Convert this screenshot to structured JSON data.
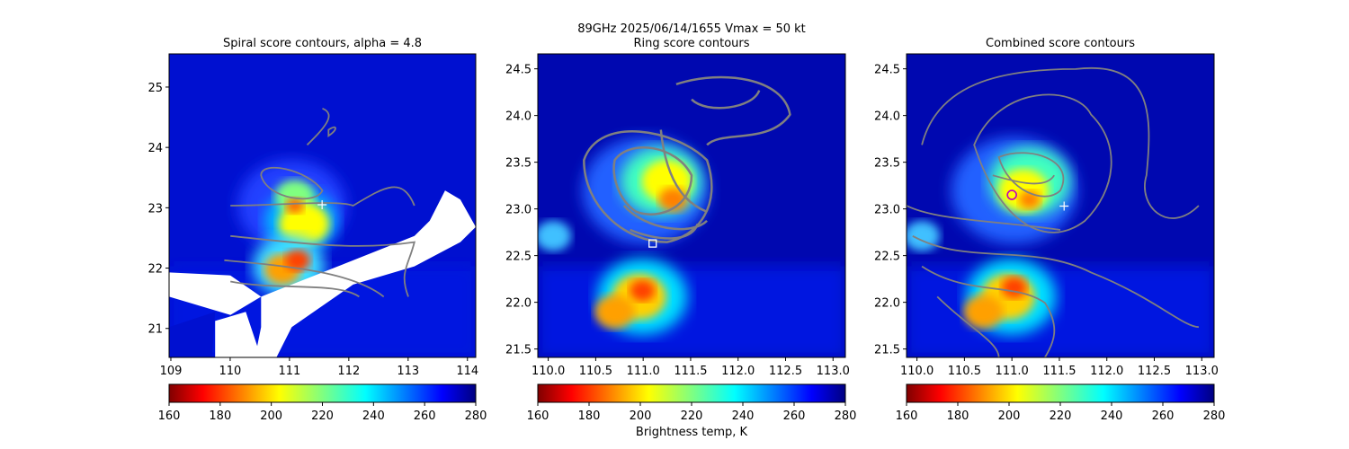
{
  "figure": {
    "suptitle": "89GHz  2025/06/14/1655    Vmax = 50 kt",
    "colorbar_label": "Brightness temp, K"
  },
  "chart_data": [
    {
      "type": "heatmap",
      "title": "Spiral score contours, alpha =  4.8",
      "xlim": [
        108.97,
        114.14
      ],
      "ylim": [
        20.52,
        25.55
      ],
      "xticks": [
        109,
        110,
        111,
        112,
        113,
        114
      ],
      "xtick_labels": [
        "109",
        "110",
        "111",
        "112",
        "113",
        "114"
      ],
      "yticks": [
        21,
        22,
        23,
        24,
        25
      ],
      "ytick_labels": [
        "21",
        "22",
        "23",
        "24",
        "25"
      ],
      "colorbar": {
        "range": [
          160,
          280
        ],
        "ticks": [
          "160",
          "180",
          "200",
          "220",
          "240",
          "260",
          "280"
        ],
        "colormap": "jet_r"
      },
      "markers": [
        {
          "shape": "plus",
          "x": 111.55,
          "y": 23.05,
          "color": "#ffffff"
        }
      ],
      "contour_color": "#808080"
    },
    {
      "type": "heatmap",
      "title": "Ring score contours",
      "xlim": [
        109.89,
        113.13
      ],
      "ylim": [
        21.41,
        24.66
      ],
      "xticks": [
        110.0,
        110.5,
        111.0,
        111.5,
        112.0,
        112.5,
        113.0
      ],
      "xtick_labels": [
        "110.0",
        "110.5",
        "111.0",
        "111.5",
        "112.0",
        "112.5",
        "113.0"
      ],
      "yticks": [
        21.5,
        22.0,
        22.5,
        23.0,
        23.5,
        24.0,
        24.5
      ],
      "ytick_labels": [
        "21.5",
        "22.0",
        "22.5",
        "23.0",
        "23.5",
        "24.0",
        "24.5"
      ],
      "colorbar": {
        "range": [
          160,
          280
        ],
        "ticks": [
          "160",
          "180",
          "200",
          "220",
          "240",
          "260",
          "280"
        ],
        "colormap": "jet_r"
      },
      "markers": [
        {
          "shape": "square",
          "x": 111.1,
          "y": 22.63,
          "color": "#ffffff"
        }
      ],
      "contour_color": "#808080"
    },
    {
      "type": "heatmap",
      "title": "Combined score contours",
      "xlim": [
        109.89,
        113.13
      ],
      "ylim": [
        21.41,
        24.66
      ],
      "xticks": [
        110.0,
        110.5,
        111.0,
        111.5,
        112.0,
        112.5,
        113.0
      ],
      "xtick_labels": [
        "110.0",
        "110.5",
        "111.0",
        "111.5",
        "112.0",
        "112.5",
        "113.0"
      ],
      "yticks": [
        21.5,
        22.0,
        22.5,
        23.0,
        23.5,
        24.0,
        24.5
      ],
      "ytick_labels": [
        "21.5",
        "22.0",
        "22.5",
        "23.0",
        "23.5",
        "24.0",
        "24.5"
      ],
      "colorbar": {
        "range": [
          160,
          280
        ],
        "ticks": [
          "160",
          "180",
          "200",
          "220",
          "240",
          "260",
          "280"
        ],
        "colormap": "jet_r"
      },
      "markers": [
        {
          "shape": "circle",
          "x": 111.0,
          "y": 23.15,
          "color": "#c000c0"
        },
        {
          "shape": "plus",
          "x": 111.55,
          "y": 23.03,
          "color": "#ffffff"
        }
      ],
      "contour_color": "#808080"
    }
  ]
}
